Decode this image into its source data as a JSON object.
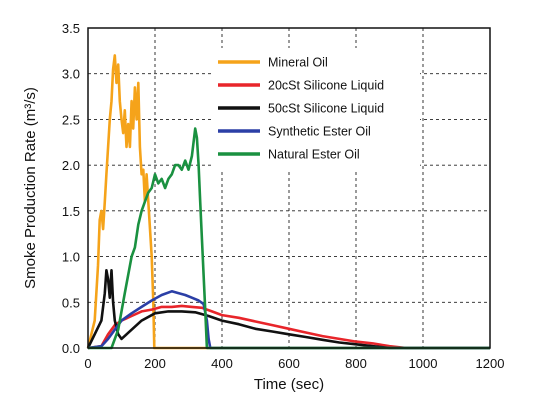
{
  "chart_data": {
    "type": "line",
    "title": "",
    "xlabel": "Time (sec)",
    "ylabel": "Smoke Production Rate (m³/s)",
    "xlim": [
      0,
      1200
    ],
    "ylim": [
      0,
      3.5
    ],
    "xticks": [
      "0",
      "200",
      "400",
      "600",
      "800",
      "1000",
      "1200"
    ],
    "yticks": [
      "0.0",
      "0.5",
      "1.0",
      "1.5",
      "2.0",
      "2.5",
      "3.0",
      "3.5"
    ],
    "grid": true,
    "legend_position": "top-center",
    "series": [
      {
        "name": "Mineral Oil",
        "color": "#f5a31a",
        "points": [
          [
            0,
            0
          ],
          [
            20,
            0.3
          ],
          [
            30,
            0.9
          ],
          [
            35,
            1.4
          ],
          [
            40,
            1.5
          ],
          [
            45,
            1.3
          ],
          [
            50,
            1.6
          ],
          [
            55,
            1.9
          ],
          [
            60,
            2.2
          ],
          [
            65,
            2.5
          ],
          [
            70,
            2.7
          ],
          [
            75,
            3.05
          ],
          [
            80,
            3.2
          ],
          [
            85,
            2.9
          ],
          [
            90,
            3.1
          ],
          [
            95,
            2.7
          ],
          [
            100,
            2.5
          ],
          [
            105,
            2.35
          ],
          [
            110,
            2.6
          ],
          [
            115,
            2.2
          ],
          [
            120,
            2.45
          ],
          [
            125,
            2.2
          ],
          [
            130,
            2.7
          ],
          [
            135,
            2.4
          ],
          [
            140,
            2.85
          ],
          [
            145,
            2.5
          ],
          [
            150,
            2.9
          ],
          [
            155,
            2.2
          ],
          [
            160,
            1.9
          ],
          [
            165,
            1.95
          ],
          [
            170,
            1.6
          ],
          [
            175,
            1.9
          ],
          [
            180,
            1.6
          ],
          [
            185,
            1.3
          ],
          [
            190,
            1.0
          ],
          [
            195,
            0.5
          ],
          [
            198,
            0.0
          ],
          [
            1200,
            0.0
          ]
        ]
      },
      {
        "name": "20cSt Silicone Liquid",
        "color": "#e8252a",
        "points": [
          [
            0,
            0
          ],
          [
            40,
            0.02
          ],
          [
            60,
            0.15
          ],
          [
            80,
            0.25
          ],
          [
            100,
            0.3
          ],
          [
            130,
            0.35
          ],
          [
            160,
            0.4
          ],
          [
            190,
            0.42
          ],
          [
            220,
            0.45
          ],
          [
            250,
            0.45
          ],
          [
            280,
            0.46
          ],
          [
            310,
            0.45
          ],
          [
            340,
            0.44
          ],
          [
            370,
            0.4
          ],
          [
            400,
            0.36
          ],
          [
            450,
            0.33
          ],
          [
            500,
            0.29
          ],
          [
            550,
            0.25
          ],
          [
            600,
            0.21
          ],
          [
            650,
            0.17
          ],
          [
            700,
            0.13
          ],
          [
            750,
            0.1
          ],
          [
            800,
            0.07
          ],
          [
            850,
            0.05
          ],
          [
            900,
            0.02
          ],
          [
            950,
            0.0
          ],
          [
            1200,
            0.0
          ]
        ]
      },
      {
        "name": "50cSt Silicone Liquid",
        "color": "#111111",
        "points": [
          [
            0,
            0
          ],
          [
            40,
            0.3
          ],
          [
            50,
            0.6
          ],
          [
            55,
            0.85
          ],
          [
            60,
            0.75
          ],
          [
            65,
            0.55
          ],
          [
            70,
            0.85
          ],
          [
            75,
            0.5
          ],
          [
            80,
            0.3
          ],
          [
            90,
            0.15
          ],
          [
            100,
            0.1
          ],
          [
            130,
            0.2
          ],
          [
            160,
            0.3
          ],
          [
            200,
            0.38
          ],
          [
            240,
            0.4
          ],
          [
            280,
            0.4
          ],
          [
            320,
            0.39
          ],
          [
            360,
            0.35
          ],
          [
            400,
            0.3
          ],
          [
            450,
            0.26
          ],
          [
            500,
            0.21
          ],
          [
            550,
            0.18
          ],
          [
            600,
            0.15
          ],
          [
            650,
            0.12
          ],
          [
            700,
            0.09
          ],
          [
            750,
            0.06
          ],
          [
            800,
            0.04
          ],
          [
            850,
            0.02
          ],
          [
            900,
            0.0
          ],
          [
            1200,
            0.0
          ]
        ]
      },
      {
        "name": "Synthetic Ester Oil",
        "color": "#2b3fa6",
        "points": [
          [
            0,
            0
          ],
          [
            40,
            0.02
          ],
          [
            60,
            0.1
          ],
          [
            80,
            0.2
          ],
          [
            100,
            0.3
          ],
          [
            130,
            0.38
          ],
          [
            160,
            0.45
          ],
          [
            190,
            0.52
          ],
          [
            220,
            0.58
          ],
          [
            250,
            0.62
          ],
          [
            270,
            0.6
          ],
          [
            290,
            0.58
          ],
          [
            310,
            0.55
          ],
          [
            330,
            0.52
          ],
          [
            345,
            0.48
          ],
          [
            355,
            0.3
          ],
          [
            360,
            0.1
          ],
          [
            365,
            0.0
          ],
          [
            1200,
            0.0
          ]
        ]
      },
      {
        "name": "Natural Ester Oil",
        "color": "#1a9140",
        "points": [
          [
            0,
            0
          ],
          [
            70,
            0.0
          ],
          [
            90,
            0.2
          ],
          [
            100,
            0.4
          ],
          [
            110,
            0.6
          ],
          [
            120,
            0.8
          ],
          [
            130,
            1.0
          ],
          [
            140,
            1.1
          ],
          [
            150,
            1.35
          ],
          [
            160,
            1.5
          ],
          [
            170,
            1.6
          ],
          [
            180,
            1.7
          ],
          [
            190,
            1.75
          ],
          [
            200,
            1.9
          ],
          [
            210,
            1.8
          ],
          [
            220,
            1.85
          ],
          [
            230,
            1.75
          ],
          [
            240,
            1.85
          ],
          [
            250,
            1.9
          ],
          [
            260,
            2.0
          ],
          [
            270,
            2.0
          ],
          [
            280,
            1.95
          ],
          [
            290,
            2.05
          ],
          [
            300,
            1.95
          ],
          [
            310,
            2.1
          ],
          [
            320,
            2.4
          ],
          [
            325,
            2.3
          ],
          [
            330,
            2.0
          ],
          [
            335,
            1.6
          ],
          [
            340,
            1.2
          ],
          [
            345,
            0.8
          ],
          [
            350,
            0.4
          ],
          [
            355,
            0.0
          ],
          [
            1200,
            0.0
          ]
        ]
      }
    ]
  }
}
